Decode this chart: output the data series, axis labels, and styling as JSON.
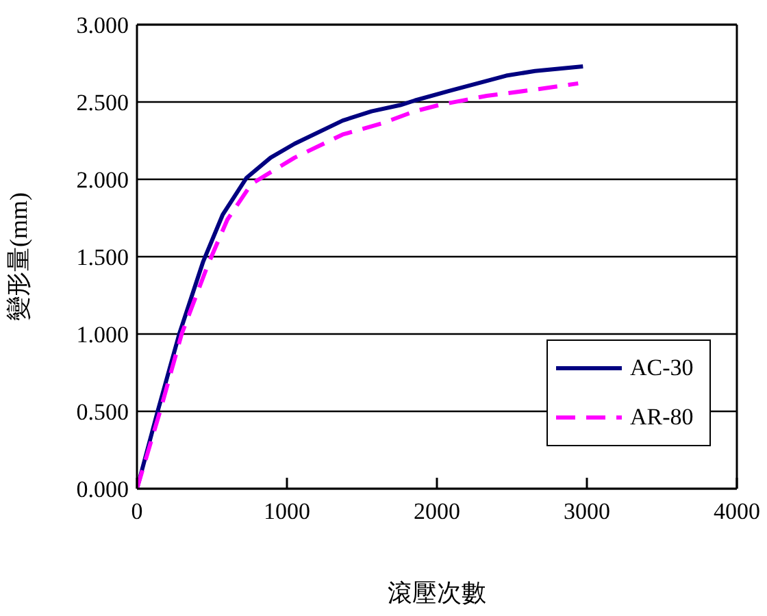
{
  "chart_data": {
    "type": "line",
    "xlabel": "滾壓次數",
    "ylabel": "變形量(mm)",
    "xlim": [
      0,
      4000
    ],
    "xticks": [
      0,
      1000,
      2000,
      3000,
      4000
    ],
    "ylim": [
      0,
      3
    ],
    "yticks": [
      {
        "value": 0,
        "label": "0.000"
      },
      {
        "value": 0.5,
        "label": "0.500"
      },
      {
        "value": 1,
        "label": "1.000"
      },
      {
        "value": 1.5,
        "label": "1.500"
      },
      {
        "value": 2,
        "label": "2.000"
      },
      {
        "value": 2.5,
        "label": "2.500"
      },
      {
        "value": 3,
        "label": "3.000"
      }
    ],
    "grid": "y",
    "legend": "bottom right",
    "marker": "none",
    "series": [
      {
        "name": "AC-30",
        "color": "#000080",
        "line_style": "solid",
        "x": [
          0,
          138,
          282,
          442,
          571,
          731,
          891,
          1051,
          1372,
          1564,
          1756,
          1853,
          2077,
          2462,
          2654,
          2974
        ],
        "values": [
          0,
          0.5,
          1.0,
          1.47,
          1.77,
          2.01,
          2.14,
          2.23,
          2.38,
          2.44,
          2.48,
          2.51,
          2.57,
          2.67,
          2.7,
          2.73
        ]
      },
      {
        "name": "AR-80",
        "color": "#ff00ff",
        "line_style": "dashed",
        "x": [
          0,
          154,
          298,
          474,
          603,
          763,
          1051,
          1372,
          1628,
          1853,
          2013,
          2333,
          2654,
          2942
        ],
        "values": [
          0,
          0.5,
          1.0,
          1.45,
          1.74,
          1.97,
          2.14,
          2.29,
          2.36,
          2.44,
          2.48,
          2.54,
          2.58,
          2.62
        ]
      }
    ]
  }
}
